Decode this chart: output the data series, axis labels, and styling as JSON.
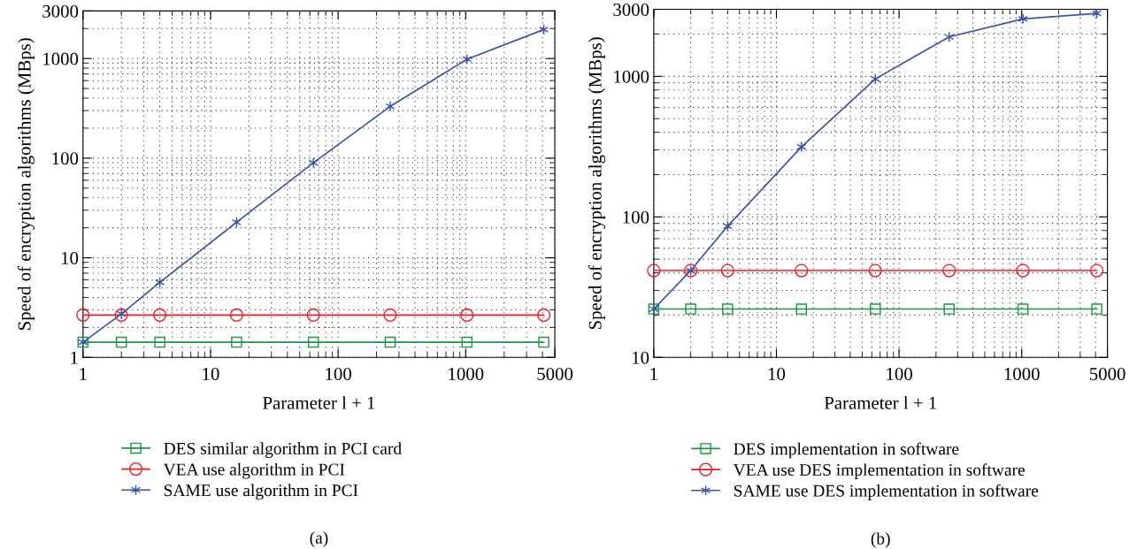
{
  "chart_data": [
    {
      "type": "line",
      "xlabel": "Parameter l + 1",
      "ylabel": "Speed of encryption algorithms (MBps)",
      "log": "xy",
      "grid": true,
      "legend": "bottom",
      "annotations": [
        "(a)"
      ],
      "xlim": [
        1,
        5000
      ],
      "xticks": [
        1,
        10,
        100,
        1000,
        5000
      ],
      "ylim": [
        1,
        3000
      ],
      "yticks": [
        1,
        10,
        100,
        1000,
        3000
      ],
      "x": [
        1,
        2,
        4,
        16,
        64,
        256,
        1024,
        4096
      ],
      "series": [
        {
          "name": "DES similar algorithm in PCI card",
          "color": "#1a9641",
          "marker": "square",
          "values": [
            1.42,
            1.42,
            1.42,
            1.42,
            1.42,
            1.42,
            1.42,
            1.42
          ]
        },
        {
          "name": "VEA use algorithm in PCI",
          "color": "#ee1c25",
          "marker": "circle",
          "values": [
            2.66,
            2.66,
            2.66,
            2.66,
            2.66,
            2.66,
            2.66,
            2.66
          ]
        },
        {
          "name": "SAME use algorithm in PCI",
          "color": "#3a53a4",
          "marker": "cross",
          "values": [
            1.42,
            2.73,
            5.66,
            22.7,
            89.7,
            331,
            984,
            1954
          ]
        }
      ]
    },
    {
      "type": "line",
      "xlabel": "Parameter l + 1",
      "ylabel": "Speed of encryption algorithms (MBps)",
      "log": "xy",
      "grid": true,
      "legend": "bottom",
      "annotations": [
        "(b)"
      ],
      "xlim": [
        1,
        5000
      ],
      "xticks": [
        1,
        10,
        100,
        1000,
        5000
      ],
      "ylim": [
        10,
        3000
      ],
      "yticks": [
        10,
        100,
        1000,
        3000
      ],
      "x": [
        1,
        2,
        4,
        16,
        64,
        256,
        1024,
        4096
      ],
      "series": [
        {
          "name": "DES implementation in software",
          "color": "#1a9641",
          "marker": "square",
          "values": [
            22.1,
            22.1,
            22.1,
            22.1,
            22.1,
            22.1,
            22.1,
            22.1
          ]
        },
        {
          "name": "VEA use DES implementation in software",
          "color": "#ee1c25",
          "marker": "circle",
          "values": [
            41.5,
            41.5,
            41.5,
            41.5,
            41.5,
            41.5,
            41.5,
            41.5
          ]
        },
        {
          "name": "SAME use DES implementation in software",
          "color": "#3a53a4",
          "marker": "cross",
          "values": [
            22.1,
            41.5,
            85.9,
            315,
            959,
            1909,
            2567,
            2805
          ]
        }
      ]
    }
  ]
}
